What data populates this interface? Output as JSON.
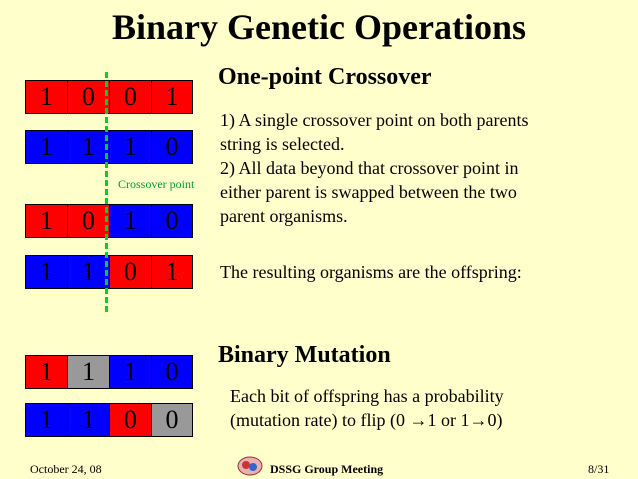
{
  "title": "Binary Genetic Operations",
  "crossover": {
    "heading": "One-point Crossover",
    "lines": [
      "1) A single crossover point on both parents",
      "string is selected.",
      "2) All data beyond that crossover point in",
      "either parent is swapped between the two",
      "parent organisms."
    ],
    "result_text": "The resulting organisms are the offspring:",
    "point_label": "Crossover point",
    "parent1": [
      "1",
      "0",
      "0",
      "1"
    ],
    "parent2": [
      "1",
      "1",
      "1",
      "0"
    ],
    "offspring1": [
      "1",
      "0",
      "1",
      "0"
    ],
    "offspring2": [
      "1",
      "1",
      "0",
      "1"
    ]
  },
  "mutation": {
    "heading": "Binary Mutation",
    "lines": [
      "Each bit of offspring has a probability",
      "(mutation rate) to flip (0 →1 or 1→0)"
    ],
    "string1": [
      "1",
      "1",
      "1",
      "0"
    ],
    "string2": [
      "1",
      "1",
      "0",
      "0"
    ]
  },
  "footer": {
    "date": "October 24, 08",
    "meeting": "DSSG Group Meeting",
    "page": "8/31"
  },
  "colors": {
    "background": "#FFFFCC",
    "red": "#FF0000",
    "blue": "#0000FF",
    "mutated": "#999999",
    "crossover_line": "#00CC33"
  }
}
